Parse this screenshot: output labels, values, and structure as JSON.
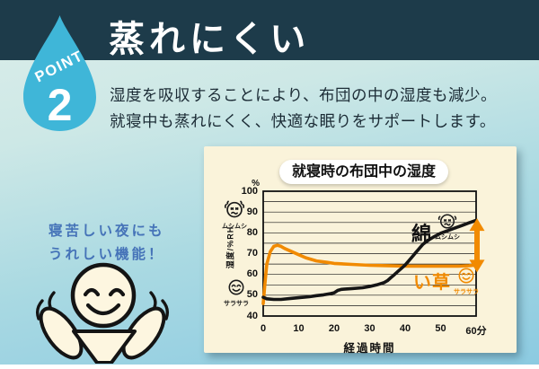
{
  "header": {
    "bar_color": "#1d3b4a",
    "title": "蒸れにくい",
    "point_label": "POINT",
    "point_number": "2",
    "drop_color": "#3fb6d8"
  },
  "intro": {
    "line1": "湿度を吸収することにより、布団の中の湿度も減少。",
    "line2": "就寝中も蒸れにくく、快適な眠りをサポートします。"
  },
  "note": {
    "line1": "寝苦しい夜にも",
    "line2": "うれしい機能！",
    "color": "#4573b8"
  },
  "panel": {
    "bg": "#faf3da"
  },
  "chart_data": {
    "type": "line",
    "title": "就寝時の布団中の湿度",
    "xlabel": "経過時間",
    "ylabel": "湿度/%RH",
    "y_unit_label": "%",
    "xlim": [
      0,
      60
    ],
    "ylim": [
      40,
      100
    ],
    "grid": true,
    "grid_step": 5,
    "x_ticks": [
      "0",
      "10",
      "20",
      "30",
      "40",
      "50",
      "60分"
    ],
    "x_tick_values": [
      0,
      10,
      20,
      30,
      40,
      50,
      60
    ],
    "y_ticks": [
      100,
      90,
      80,
      70,
      60,
      50,
      40
    ],
    "axis_faces": [
      {
        "mood": "sweaty",
        "caption": "ムシムシ",
        "at_value": 90
      },
      {
        "mood": "happy",
        "caption": "サラサラ",
        "at_value": 49
      }
    ],
    "series": [
      {
        "name": "い草",
        "color": "#f18a00",
        "mood": "happy",
        "caption": "サラサラ",
        "x": [
          0,
          0.5,
          1,
          2,
          3,
          4,
          5,
          6,
          8,
          10,
          12,
          15,
          18,
          20,
          25,
          30,
          35,
          40,
          45,
          50,
          55,
          58,
          60
        ],
        "y": [
          46,
          56,
          65,
          71,
          73.5,
          74,
          73.5,
          72.5,
          71,
          69.5,
          68,
          66.5,
          65.8,
          65.3,
          64.8,
          64.4,
          64.2,
          64,
          64,
          64,
          64,
          64.2,
          64.5
        ]
      },
      {
        "name": "綿",
        "color": "#151515",
        "mood": "sweaty",
        "caption": "ムシムシ",
        "x": [
          0,
          1,
          3,
          5,
          8,
          10,
          13,
          15,
          17,
          19,
          20,
          21,
          22,
          25,
          28,
          30,
          32,
          34,
          35,
          36,
          37,
          38,
          39,
          40,
          41,
          42,
          43,
          44,
          45,
          46,
          47,
          48,
          50,
          52,
          54,
          56,
          58,
          60
        ],
        "y": [
          49,
          48.3,
          48,
          48,
          48.5,
          48.8,
          49.3,
          49.8,
          50.2,
          50.8,
          51.2,
          52.3,
          52.8,
          53.2,
          53.6,
          54.2,
          55,
          56,
          57,
          58.5,
          60,
          61.5,
          63,
          64.5,
          66.5,
          68.5,
          70.5,
          72.5,
          74.5,
          75.8,
          77,
          78,
          79.8,
          81,
          82.3,
          83.5,
          84.8,
          86
        ]
      }
    ],
    "gap_arrow": {
      "at_x": 60,
      "from": 87,
      "to": 61,
      "color": "#f18a00"
    }
  }
}
